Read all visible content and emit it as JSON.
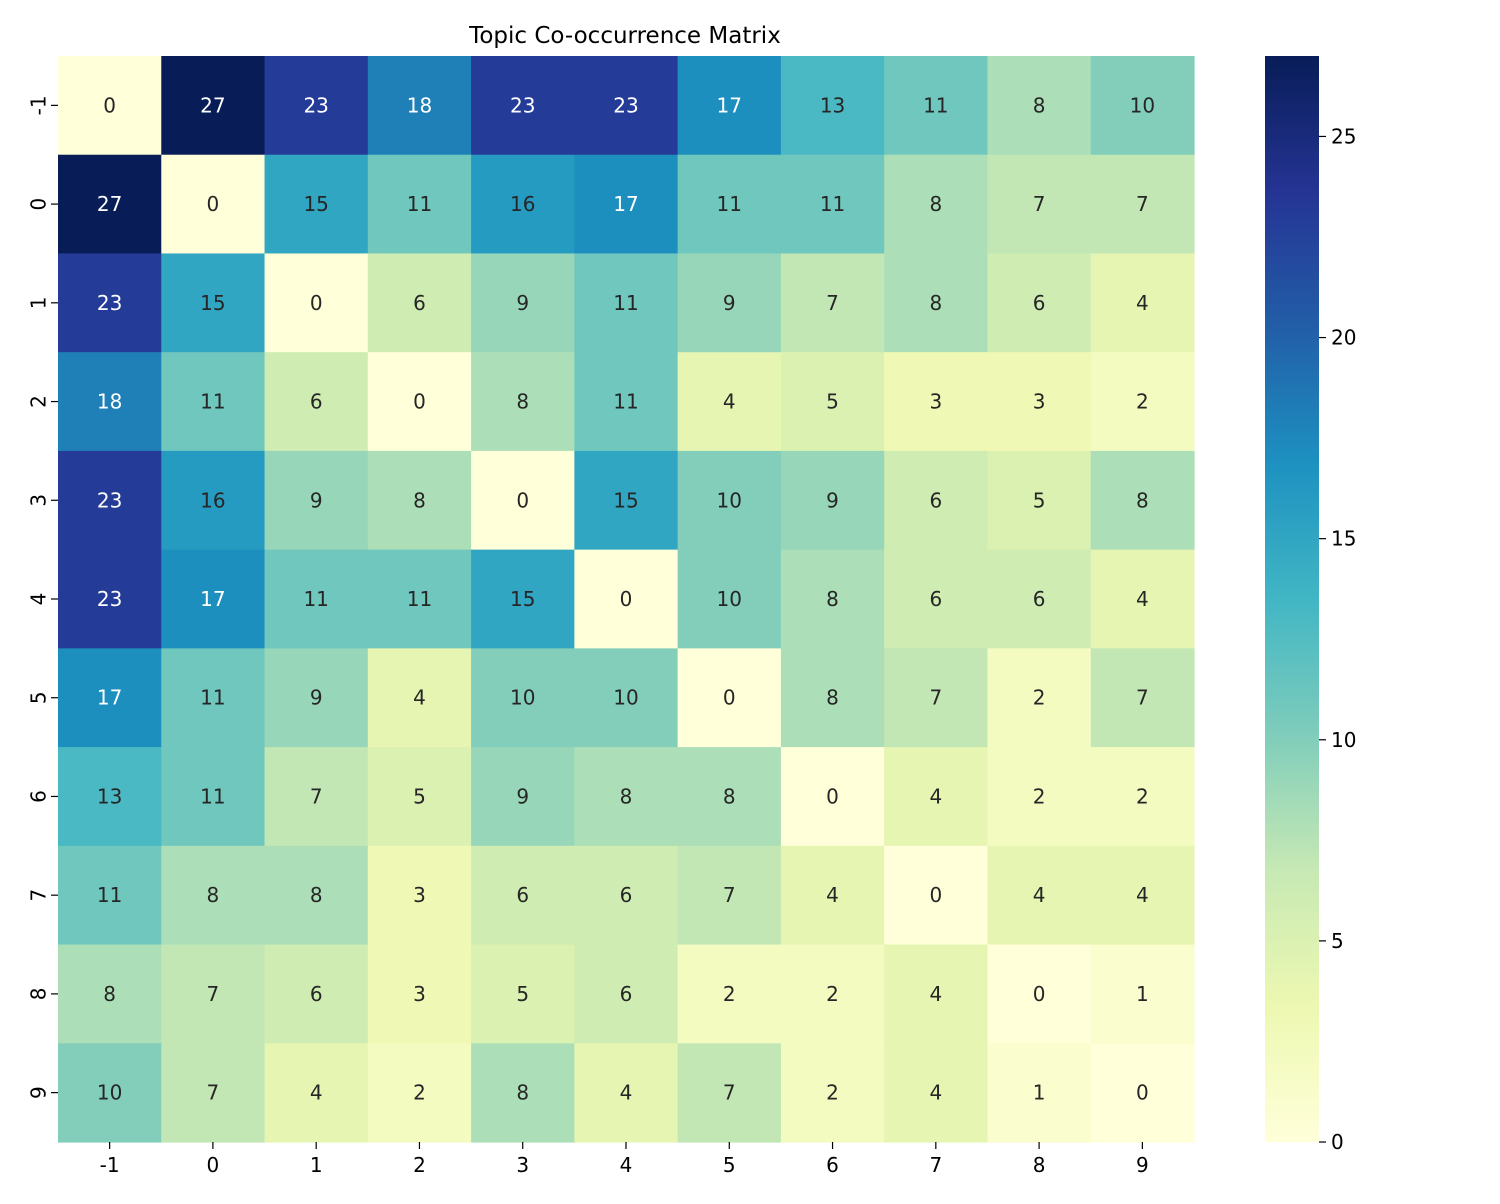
{
  "chart_data": {
    "type": "heatmap",
    "title": "Topic Co-occurrence Matrix",
    "xlabel": "",
    "ylabel": "",
    "x_categories": [
      "-1",
      "0",
      "1",
      "2",
      "3",
      "4",
      "5",
      "6",
      "7",
      "8",
      "9"
    ],
    "y_categories": [
      "-1",
      "0",
      "1",
      "2",
      "3",
      "4",
      "5",
      "6",
      "7",
      "8",
      "9"
    ],
    "values": [
      [
        0,
        27,
        23,
        18,
        23,
        23,
        17,
        13,
        11,
        8,
        10
      ],
      [
        27,
        0,
        15,
        11,
        16,
        17,
        11,
        11,
        8,
        7,
        7
      ],
      [
        23,
        15,
        0,
        6,
        9,
        11,
        9,
        7,
        8,
        6,
        4
      ],
      [
        18,
        11,
        6,
        0,
        8,
        11,
        4,
        5,
        3,
        3,
        2
      ],
      [
        23,
        16,
        9,
        8,
        0,
        15,
        10,
        9,
        6,
        5,
        8
      ],
      [
        23,
        17,
        11,
        11,
        15,
        0,
        10,
        8,
        6,
        6,
        4
      ],
      [
        17,
        11,
        9,
        4,
        10,
        10,
        0,
        8,
        7,
        2,
        7
      ],
      [
        13,
        11,
        7,
        5,
        9,
        8,
        8,
        0,
        4,
        2,
        2
      ],
      [
        11,
        8,
        8,
        3,
        6,
        6,
        7,
        4,
        0,
        4,
        4
      ],
      [
        8,
        7,
        6,
        3,
        5,
        6,
        2,
        2,
        4,
        0,
        1
      ],
      [
        10,
        7,
        4,
        2,
        8,
        4,
        7,
        2,
        4,
        1,
        0
      ]
    ],
    "colormap": "YlGnBu",
    "colorbar": {
      "range": [
        0,
        27
      ],
      "ticks": [
        0,
        5,
        10,
        15,
        20,
        25
      ]
    },
    "annotations": true,
    "grid": false,
    "colors": {
      "cmap_stops": [
        "#ffffd9",
        "#edf8b1",
        "#c7e9b4",
        "#7fcdbb",
        "#41b6c4",
        "#1d91c0",
        "#225ea8",
        "#253494",
        "#081d58"
      ],
      "text_dark": "#262626",
      "text_light": "#ffffff",
      "axis": "#000000"
    }
  }
}
